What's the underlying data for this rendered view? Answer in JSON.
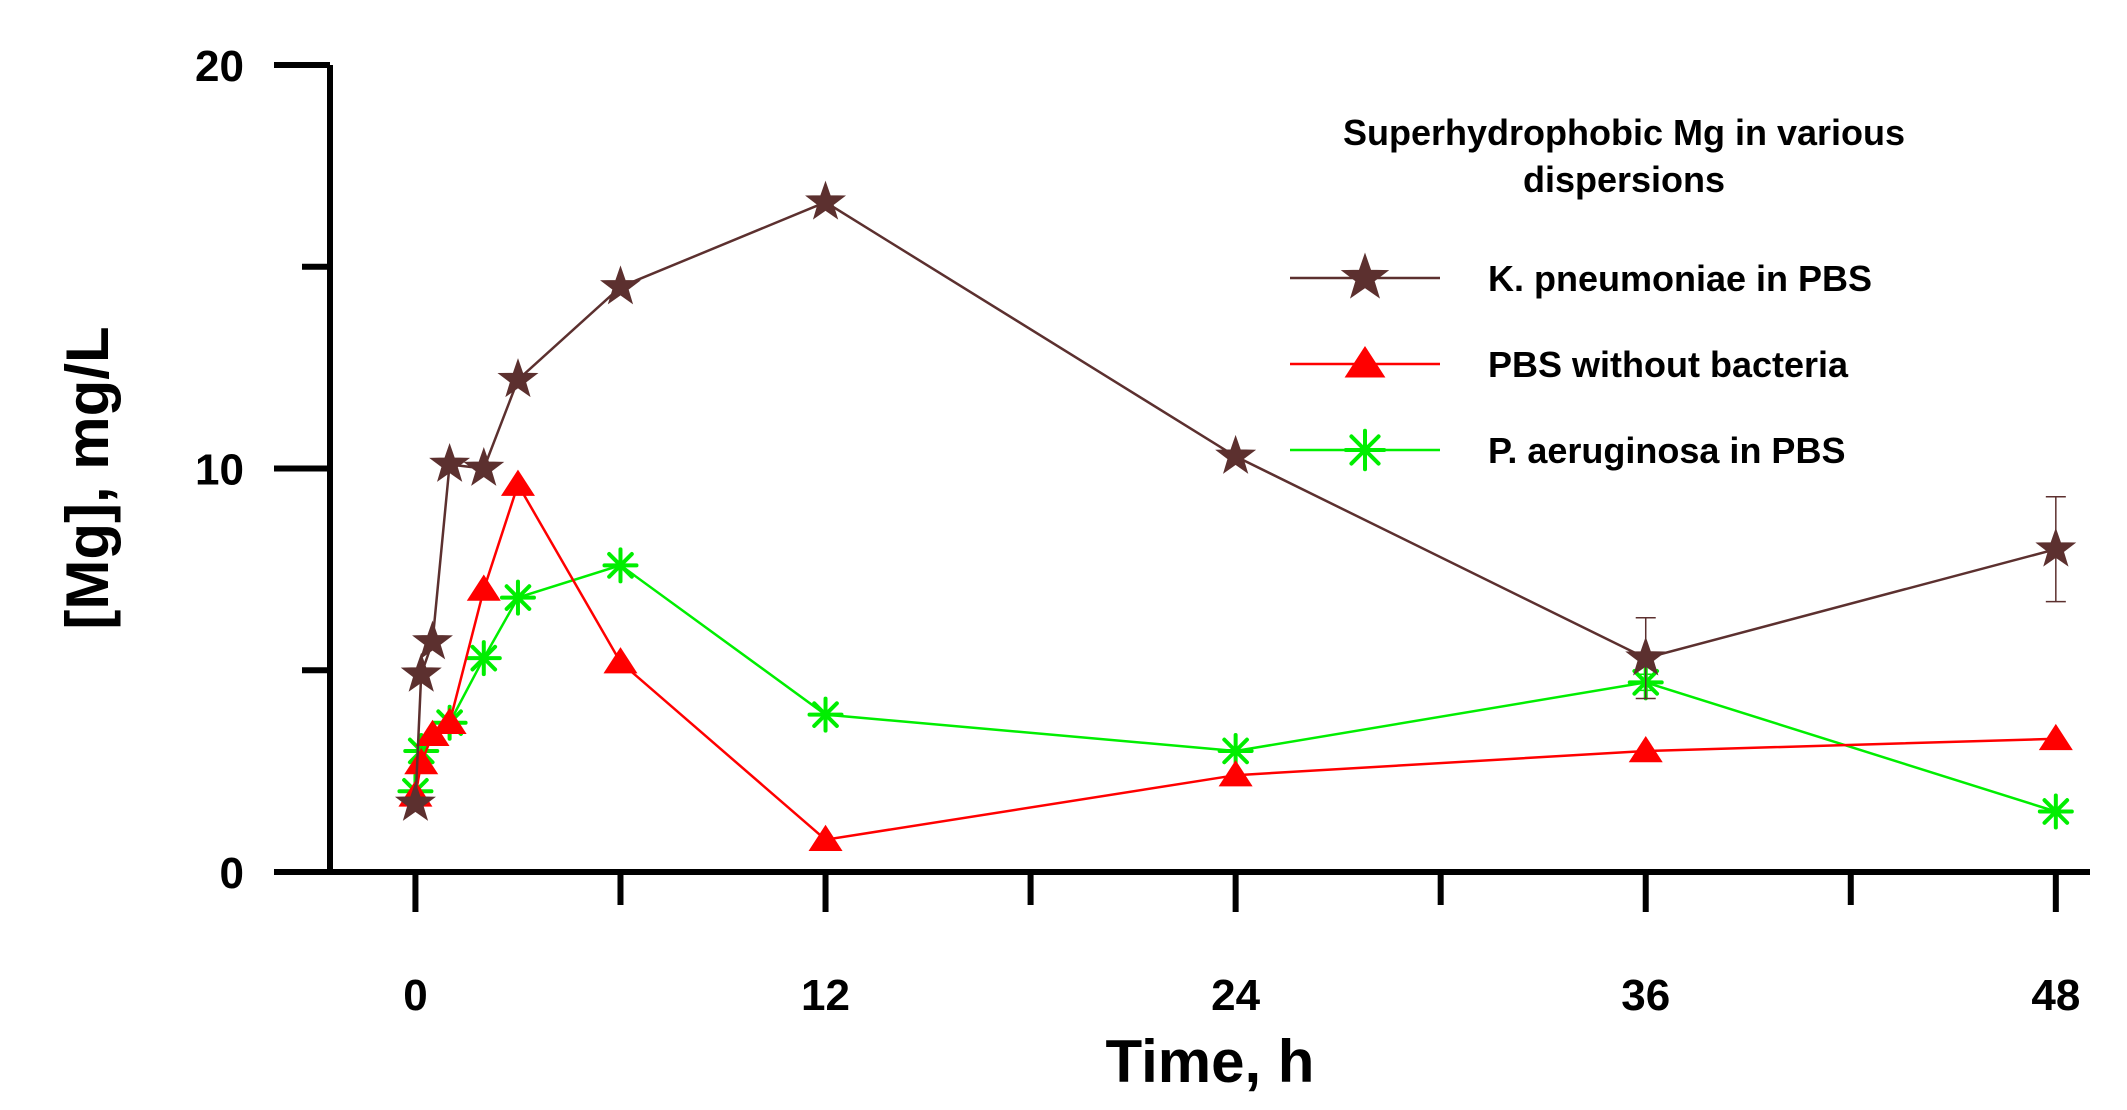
{
  "chart_data": {
    "type": "line",
    "title": "",
    "xlabel": "Time, h",
    "ylabel": "[Mg], mg/L",
    "xlim": [
      -2.5,
      49
    ],
    "ylim": [
      0,
      20
    ],
    "x_ticks_major": [
      0,
      12,
      24,
      36,
      48
    ],
    "x_tick_labels": [
      "0",
      "12",
      "24",
      "36",
      "48"
    ],
    "x_ticks_minor": [
      6,
      18,
      30,
      42
    ],
    "y_ticks_major": [
      0,
      10,
      20
    ],
    "y_tick_labels": [
      "0",
      "10",
      "20"
    ],
    "y_ticks_minor": [
      5,
      15
    ],
    "grid": false,
    "legend": {
      "title_lines": [
        "Superhydrophobic Mg in various",
        "dispersions"
      ],
      "position": "top-right"
    },
    "series": [
      {
        "name": "K. pneumoniae in PBS",
        "color": "#5c302f",
        "marker": "star",
        "x": [
          0,
          0.17,
          0.5,
          1,
          2,
          3,
          6,
          12,
          24,
          36,
          48
        ],
        "y": [
          1.7,
          4.9,
          5.7,
          10.1,
          10.0,
          12.2,
          14.5,
          16.6,
          10.3,
          5.3,
          8.0
        ],
        "error": [
          0,
          0,
          0,
          0,
          0,
          0,
          0,
          0,
          0,
          1.0,
          1.3
        ]
      },
      {
        "name": "PBS without bacteria",
        "color": "#ff0000",
        "marker": "triangle",
        "x": [
          0,
          0.17,
          0.5,
          1,
          2,
          3,
          6,
          12,
          24,
          36,
          48
        ],
        "y": [
          1.9,
          2.7,
          3.4,
          3.7,
          7.0,
          9.6,
          5.2,
          0.8,
          2.4,
          3.0,
          3.3
        ],
        "error": [
          0,
          0,
          0,
          0,
          0,
          0,
          0,
          0,
          0,
          0,
          0
        ]
      },
      {
        "name": "P. aeruginosa in PBS",
        "color": "#00ee00",
        "marker": "asterisk",
        "x": [
          0,
          0.17,
          1,
          2,
          3,
          6,
          12,
          24,
          36,
          48
        ],
        "y": [
          2.0,
          3.0,
          3.7,
          5.3,
          6.8,
          7.6,
          3.9,
          3.0,
          4.7,
          1.5
        ],
        "error": [
          0,
          0,
          0,
          0,
          0,
          0,
          0,
          0,
          0.2,
          0
        ]
      }
    ]
  }
}
